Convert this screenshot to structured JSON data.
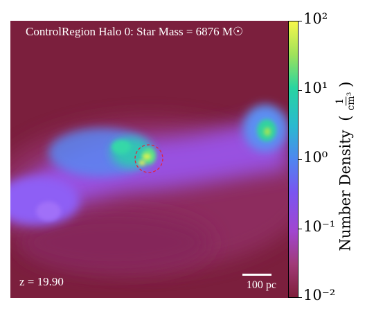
{
  "title": "ControlRegion Halo 0: Star Mass = 6876 M☉",
  "redshift_label": "z = 19.90",
  "scale_bar_label": "100 pc",
  "colorbar": {
    "label": "Number Density",
    "unit_numerator": "1",
    "unit_denominator": "cm³",
    "tick_labels": [
      "10²",
      "10¹",
      "10⁰",
      "10⁻¹",
      "10⁻²"
    ],
    "tick_values": [
      100,
      10,
      1,
      0.1,
      0.01
    ],
    "scale": "log",
    "colormap": "plasma-like (dark red → purple → blue → green → yellow)"
  },
  "colors": {
    "background_low": "#7a1e3c",
    "filament": "#9b52e6",
    "dense": "#3fcf9a",
    "peak": "#f5f04a",
    "marker": "#e0243c"
  }
}
